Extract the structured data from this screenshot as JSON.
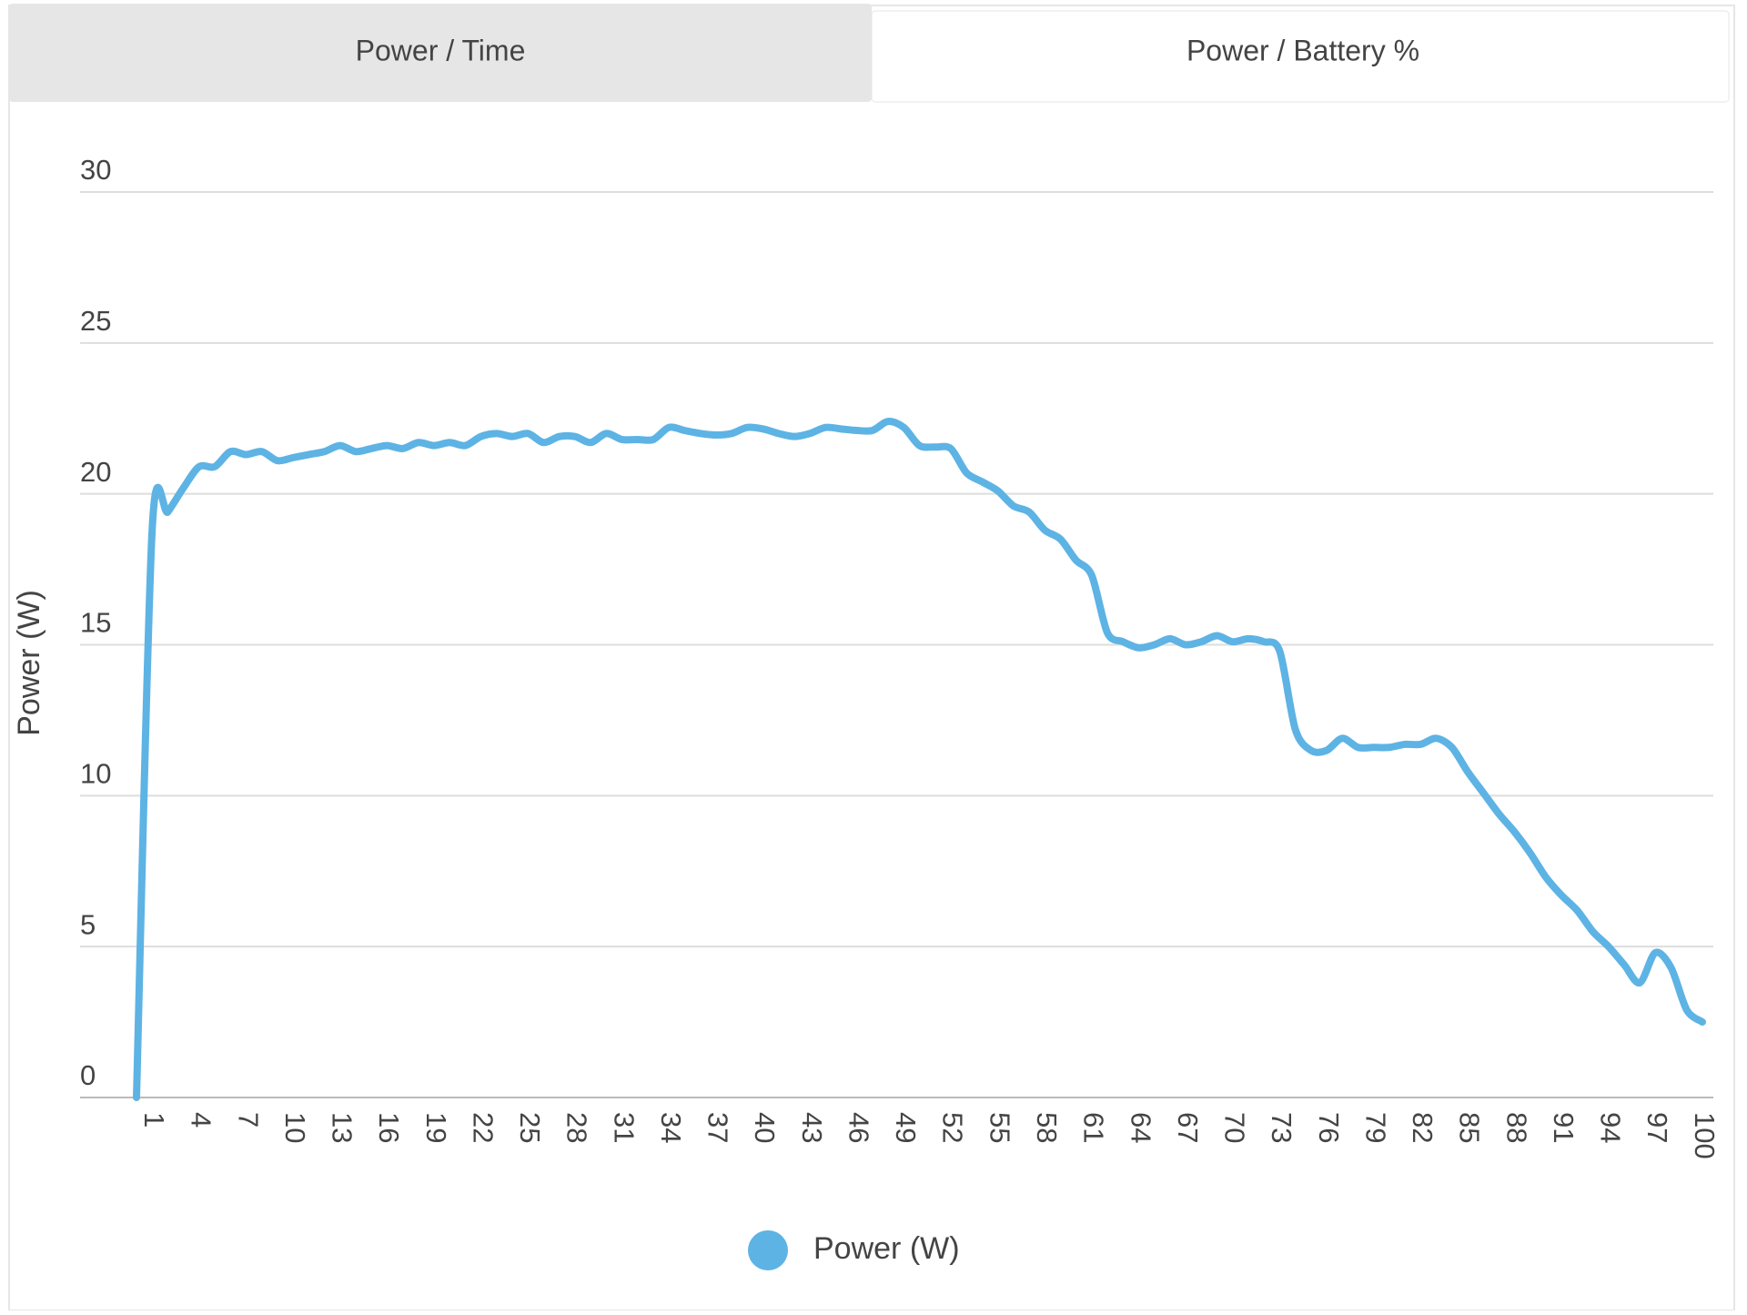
{
  "tabs": [
    "Power / Time",
    "Power / Battery %"
  ],
  "active_tab": 1,
  "chart_data": {
    "type": "line",
    "y_label": "Power (W)",
    "categories": [
      null,
      "1",
      null,
      null,
      "4",
      null,
      null,
      "7",
      null,
      null,
      "10",
      null,
      null,
      "13",
      null,
      null,
      "16",
      null,
      null,
      "19",
      null,
      null,
      "22",
      null,
      null,
      "25",
      null,
      null,
      "28",
      null,
      null,
      "31",
      null,
      null,
      "34",
      null,
      null,
      "37",
      null,
      null,
      "40",
      null,
      null,
      "43",
      null,
      null,
      "46",
      null,
      null,
      "49",
      null,
      null,
      "52",
      null,
      null,
      "55",
      null,
      null,
      "58",
      null,
      null,
      "61",
      null,
      null,
      "64",
      null,
      null,
      "67",
      null,
      null,
      "70",
      null,
      null,
      "73",
      null,
      null,
      "76",
      null,
      null,
      "79",
      null,
      null,
      "82",
      null,
      null,
      "85",
      null,
      null,
      "88",
      null,
      null,
      "91",
      null,
      null,
      "94",
      null,
      null,
      "97",
      null,
      null,
      "100"
    ],
    "series": [
      {
        "name": "Power (W)",
        "color": "#5db3e4",
        "values": [
          0,
          18.8,
          19.4,
          20.2,
          20.9,
          20.9,
          21.4,
          21.3,
          21.4,
          21.1,
          21.2,
          21.3,
          21.4,
          21.6,
          21.4,
          21.5,
          21.6,
          21.5,
          21.7,
          21.6,
          21.7,
          21.6,
          21.9,
          22.0,
          21.9,
          22.0,
          21.7,
          21.9,
          21.9,
          21.7,
          22.0,
          21.8,
          21.8,
          21.8,
          22.2,
          22.1,
          22.0,
          21.95,
          22.0,
          22.2,
          22.15,
          22.0,
          21.9,
          22.0,
          22.2,
          22.15,
          22.1,
          22.1,
          22.4,
          22.2,
          21.6,
          21.55,
          21.5,
          20.7,
          20.4,
          20.1,
          19.6,
          19.4,
          18.8,
          18.5,
          17.8,
          17.3,
          15.4,
          15.1,
          14.9,
          15.0,
          15.2,
          15.0,
          15.1,
          15.3,
          15.1,
          15.2,
          15.1,
          14.8,
          12.2,
          11.5,
          11.5,
          11.9,
          11.6,
          11.6,
          11.6,
          11.7,
          11.7,
          11.9,
          11.6,
          10.8,
          10.1,
          9.4,
          8.8,
          8.1,
          7.3,
          6.7,
          6.2,
          5.5,
          5.0,
          4.4,
          3.8,
          4.8,
          4.3,
          2.9,
          2.5
        ]
      }
    ],
    "ylim": [
      0,
      30
    ],
    "yticks": [
      0,
      5,
      10,
      15,
      20,
      25,
      30
    ],
    "grid": true
  }
}
